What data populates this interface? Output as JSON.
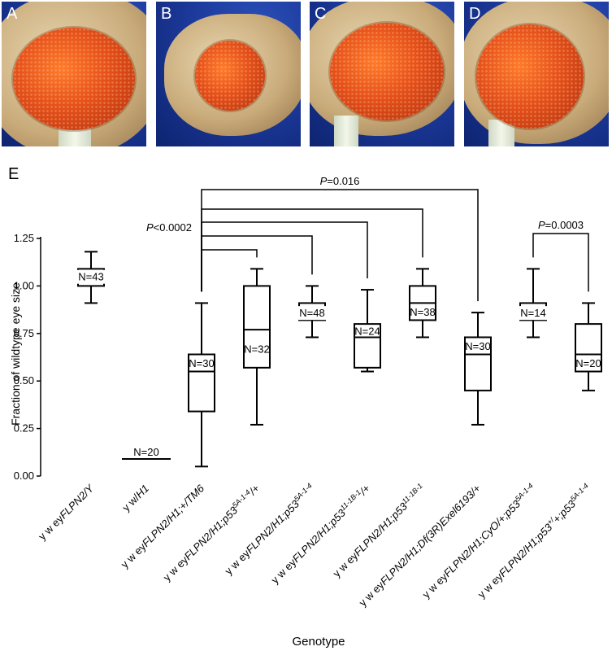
{
  "panels": [
    {
      "label": "A"
    },
    {
      "label": "B"
    },
    {
      "label": "C"
    },
    {
      "label": "D"
    }
  ],
  "colors": {
    "background_blue": "#1d3a9c",
    "eye_red": "#e5501a",
    "fly_tan": "#c9ab7a"
  },
  "chart_data": {
    "type": "box",
    "panel_label": "E",
    "ylabel": "Fraction of wildtype eye size",
    "xlabel": "Genotype",
    "ylim": [
      0.0,
      1.25
    ],
    "yticks": [
      "0.00",
      "0.25",
      "0.50",
      "0.75",
      "1.00",
      "1.25"
    ],
    "categories": [
      {
        "parts": [
          [
            "y w ey",
            "n"
          ],
          [
            "FLPN2/Y",
            "i"
          ]
        ]
      },
      {
        "parts": [
          [
            "y w/",
            "n"
          ],
          [
            "H1",
            "i"
          ]
        ]
      },
      {
        "parts": [
          [
            "y w ey",
            "n"
          ],
          [
            "FLPN2/H1;+/TM6",
            "i"
          ]
        ]
      },
      {
        "parts": [
          [
            "y w ey",
            "n"
          ],
          [
            "FLPN2/H1;p53",
            "i"
          ],
          [
            "5A-1-4",
            "sup"
          ],
          [
            "/+",
            "i"
          ]
        ]
      },
      {
        "parts": [
          [
            "y w ey",
            "n"
          ],
          [
            "FLPN2/H1;p53",
            "i"
          ],
          [
            "5A-1-4",
            "sup"
          ]
        ]
      },
      {
        "parts": [
          [
            "y w ey",
            "n"
          ],
          [
            "FLPN2/H1;p53",
            "i"
          ],
          [
            "11-1B-1",
            "sup"
          ],
          [
            "/+",
            "i"
          ]
        ]
      },
      {
        "parts": [
          [
            "y w ey",
            "n"
          ],
          [
            "FLPN2/H1;p53",
            "i"
          ],
          [
            "11-1B-1",
            "sup"
          ]
        ]
      },
      {
        "parts": [
          [
            "y w ey",
            "n"
          ],
          [
            "FLPN2/H1;Df(3R)Exel6193/+",
            "i"
          ]
        ]
      },
      {
        "parts": [
          [
            "y w ey",
            "n"
          ],
          [
            "FLPN2/H1;CyO/+;p53",
            "i"
          ],
          [
            "5A-1-4",
            "sup"
          ]
        ]
      },
      {
        "parts": [
          [
            "y w ey",
            "n"
          ],
          [
            "FLPN2/H1;p53",
            "i"
          ],
          [
            "+/",
            "sup"
          ],
          [
            "+;p53",
            "i"
          ],
          [
            "5A-1-4",
            "sup"
          ]
        ]
      }
    ],
    "boxes": [
      {
        "min": 0.91,
        "q1": 1.0,
        "median": 1.05,
        "q3": 1.09,
        "max": 1.18,
        "n_label": "N=43"
      },
      {
        "min": 0.09,
        "q1": 0.09,
        "median": 0.09,
        "q3": 0.09,
        "max": 0.09,
        "n_label": "N=20"
      },
      {
        "min": 0.05,
        "q1": 0.34,
        "median": 0.55,
        "q3": 0.64,
        "max": 0.91,
        "n_label": "N=30"
      },
      {
        "min": 0.27,
        "q1": 0.57,
        "median": 0.77,
        "q3": 1.0,
        "max": 1.09,
        "n_label": "N=32"
      },
      {
        "min": 0.73,
        "q1": 0.82,
        "median": 0.86,
        "q3": 0.91,
        "max": 1.0,
        "n_label": "N=48"
      },
      {
        "min": 0.55,
        "q1": 0.57,
        "median": 0.73,
        "q3": 0.8,
        "max": 0.98,
        "n_label": "N=24"
      },
      {
        "min": 0.73,
        "q1": 0.82,
        "median": 0.91,
        "q3": 1.0,
        "max": 1.09,
        "n_label": "N=38"
      },
      {
        "min": 0.27,
        "q1": 0.45,
        "median": 0.64,
        "q3": 0.73,
        "max": 0.86,
        "n_label": "N=30"
      },
      {
        "min": 0.73,
        "q1": 0.82,
        "median": 0.86,
        "q3": 0.91,
        "max": 1.09,
        "n_label": "N=14"
      },
      {
        "min": 0.45,
        "q1": 0.55,
        "median": 0.64,
        "q3": 0.8,
        "max": 0.91,
        "n_label": "N=20"
      }
    ],
    "comparisons": [
      {
        "from": 2,
        "to": 7,
        "label": "P=0.016"
      },
      {
        "from": 2,
        "to": 6
      },
      {
        "from": 2,
        "to": 5
      },
      {
        "from": 2,
        "to": 4,
        "label": "P<0.0002"
      },
      {
        "from": 2,
        "to": 3
      },
      {
        "from": 8,
        "to": 9,
        "label": "P=0.0003"
      }
    ]
  }
}
